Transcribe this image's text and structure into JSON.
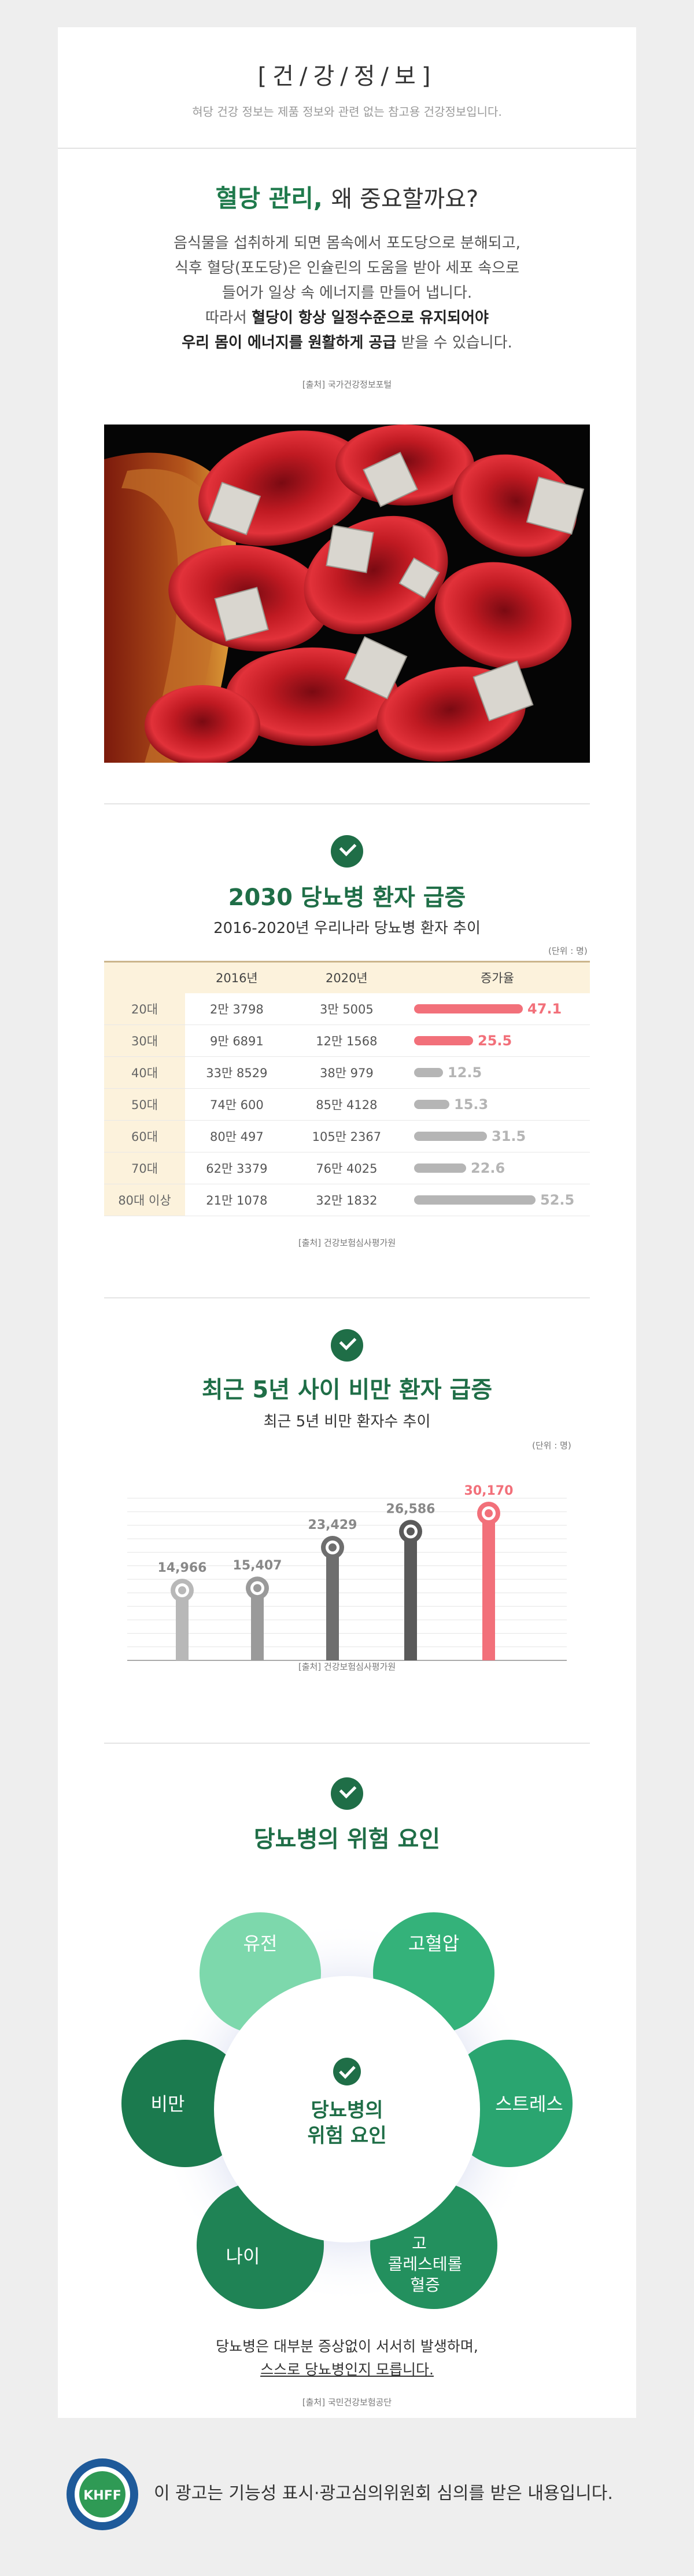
{
  "header": {
    "title": "[건/강/정/보]",
    "subtitle": "혀당 건강 정보는 제품 정보와 관련 없는 참고용 건강정보입니다."
  },
  "hero": {
    "title_highlight": "혈당 관리,",
    "title_rest": "왜 중요할까요?",
    "lines": [
      "음식물을 섭취하게 되면 몸속에서 포도당으로 분해되고,",
      "식후 혈당(포도당)은 인슐린의 도움을 받아 세포 속으로",
      "들어가 일상 속 에너지를 만들어 냅니다."
    ],
    "line4_pre": "따라서 ",
    "line4_bold": "혈당이 항상 일정수준으로 유지되어야",
    "line5_bold": "우리 몸이 에너지를 원활하게 공급",
    "line5_post": " 받을 수 있습니다.",
    "source": "[출처] 국가건강정보포털"
  },
  "diabetes": {
    "title": "2030 당뇨병 환자 급증",
    "subtitle": "2016-2020년 우리나라 당뇨병 환자 추이",
    "unit": "(단위 : 명)",
    "source": "[출처] 건강보험심사평가원",
    "colors": {
      "highlight": "#f2707a",
      "normal": "#b5b5b5"
    }
  },
  "table_data": {
    "columns": [
      "",
      "2016년",
      "2020년",
      "증가율"
    ],
    "rows": [
      {
        "age": "20대",
        "y2016": "2만 3798",
        "y2020": "3만 5005",
        "rate": 47.1,
        "rate_label": "47.1",
        "highlight": true
      },
      {
        "age": "30대",
        "y2016": "9만 6891",
        "y2020": "12만 1568",
        "rate": 25.5,
        "rate_label": "25.5",
        "highlight": true
      },
      {
        "age": "40대",
        "y2016": "33만 8529",
        "y2020": "38만 979",
        "rate": 12.5,
        "rate_label": "12.5",
        "highlight": false
      },
      {
        "age": "50대",
        "y2016": "74만 600",
        "y2020": "85만 4128",
        "rate": 15.3,
        "rate_label": "15.3",
        "highlight": false
      },
      {
        "age": "60대",
        "y2016": "80만 497",
        "y2020": "105만 2367",
        "rate": 31.5,
        "rate_label": "31.5",
        "highlight": false
      },
      {
        "age": "70대",
        "y2016": "62만 3379",
        "y2020": "76만 4025",
        "rate": 22.6,
        "rate_label": "22.6",
        "highlight": false
      },
      {
        "age": "80대 이상",
        "y2016": "21만 1078",
        "y2020": "32만 1832",
        "rate": 52.5,
        "rate_label": "52.5",
        "highlight": false
      }
    ]
  },
  "obesity": {
    "title": "최근 5년 사이 비만 환자 급증",
    "subtitle": "최근 5년 비만 환자수 추이",
    "unit": "(단위 : 명)",
    "source": "[출처] 건강보험심사평가원"
  },
  "chart_data": {
    "type": "bar",
    "categories": [
      "",
      "",
      "",
      "",
      ""
    ],
    "values": [
      14966,
      15407,
      23429,
      26586,
      30170
    ],
    "labels": [
      "14,966",
      "15,407",
      "23,429",
      "26,586",
      "30,170"
    ],
    "colors": [
      "#b8b8b8",
      "#9a9a9a",
      "#6e6e6e",
      "#5a5a5a",
      "#f2707a"
    ],
    "ylim": [
      0,
      32000
    ],
    "grid": true,
    "title": "최근 5년 비만 환자수 추이",
    "xlabel": "",
    "ylabel": ""
  },
  "risk": {
    "title": "당뇨병의 위험 요인",
    "center_line1": "당뇨병의",
    "center_line2": "위험 요인",
    "factors": [
      "유전",
      "고혈압",
      "스트레스",
      "고",
      "콜레스테롤",
      "혈증",
      "나이",
      "비만"
    ],
    "colors": {
      "dark": "#1b7a4e",
      "mid": "#2fa872",
      "light": "#7dd8ac"
    }
  },
  "closing": {
    "line1": "당뇨병은 대부분 증상없이 서서히 발생하며,",
    "line2": "스스로 당뇨병인지 모릅니다.",
    "source": "[출처] 국민건강보험공단"
  },
  "footer": {
    "badge_text": "KHFF",
    "badge_ring": "한국건강기능식품협회 표시·광고심의필",
    "text": "이 광고는 기능성 표시·광고심의위원회 심의를 받은 내용입니다."
  }
}
